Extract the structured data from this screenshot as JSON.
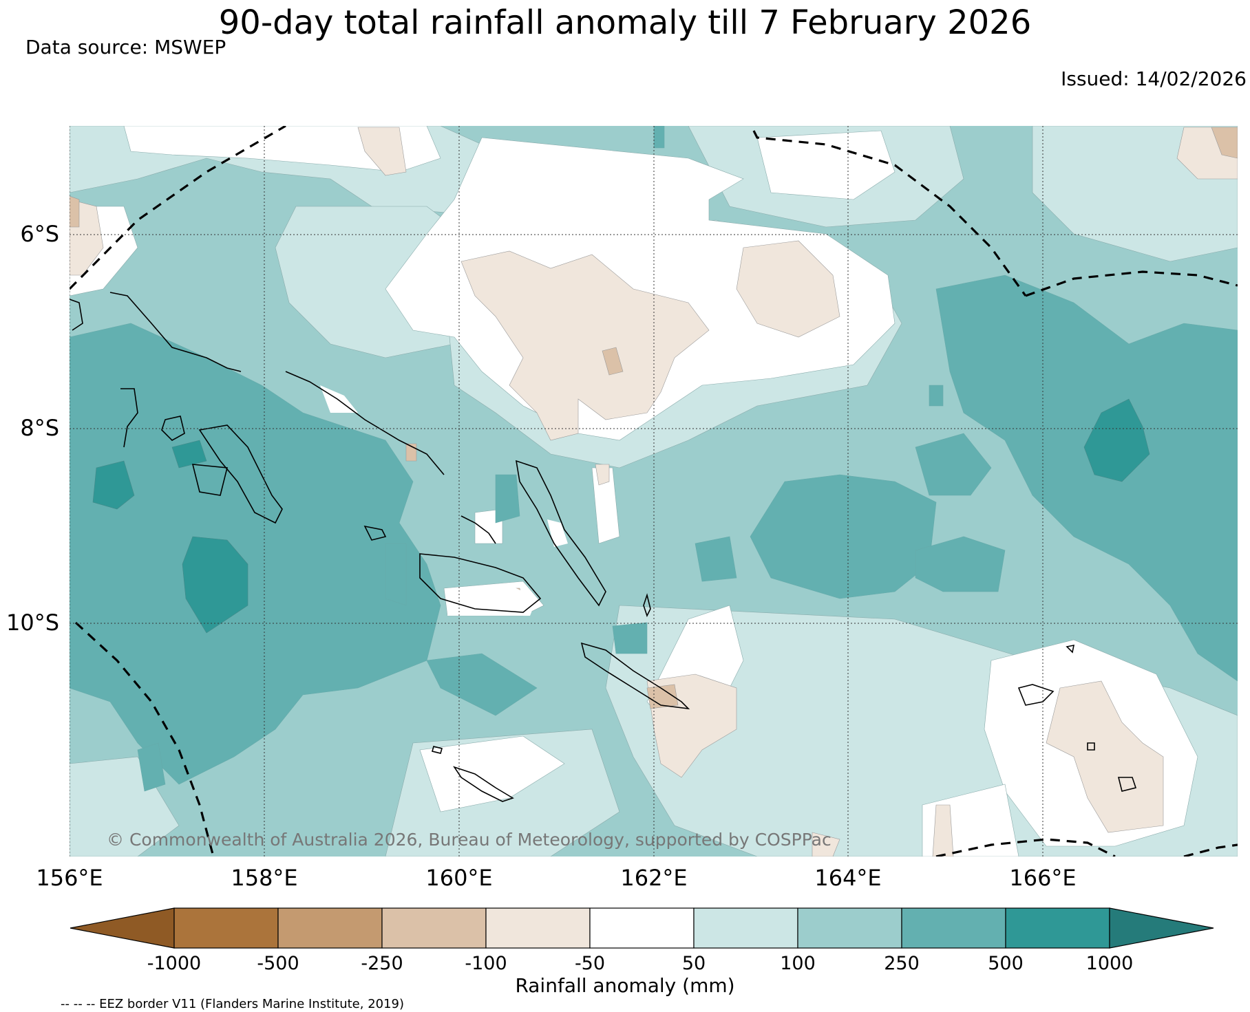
{
  "title": "90-day total rainfall anomaly till 7 February 2026",
  "data_source": "Data source: MSWEP",
  "issued": "Issued: 14/02/2026",
  "copyright": "© Commonwealth of Australia 2026, Bureau of Meteorology, supported by COSPPac",
  "map": {
    "lat_labels": [
      "6°S",
      "8°S",
      "10°S"
    ],
    "lon_labels": [
      "156°E",
      "158°E",
      "160°E",
      "162°E",
      "164°E",
      "166°E"
    ],
    "lon_range": [
      156,
      168
    ],
    "lat_range": [
      -12.4,
      -4.9
    ]
  },
  "colorbar": {
    "title": "Rainfall anomaly (mm)",
    "tick_labels": [
      "-1000",
      "-500",
      "-250",
      "-100",
      "-50",
      "50",
      "100",
      "250",
      "500",
      "1000"
    ],
    "colors": [
      "#8f5a25",
      "#ab743b",
      "#c49a70",
      "#dbc1a8",
      "#f0e6dc",
      "#ffffff",
      "#cce6e5",
      "#9ccdcc",
      "#63b0b0",
      "#2f9896",
      "#257b7a"
    ]
  },
  "eez_note": "-- -- -- EEZ border V11 (Flanders Marine Institute, 2019)"
}
